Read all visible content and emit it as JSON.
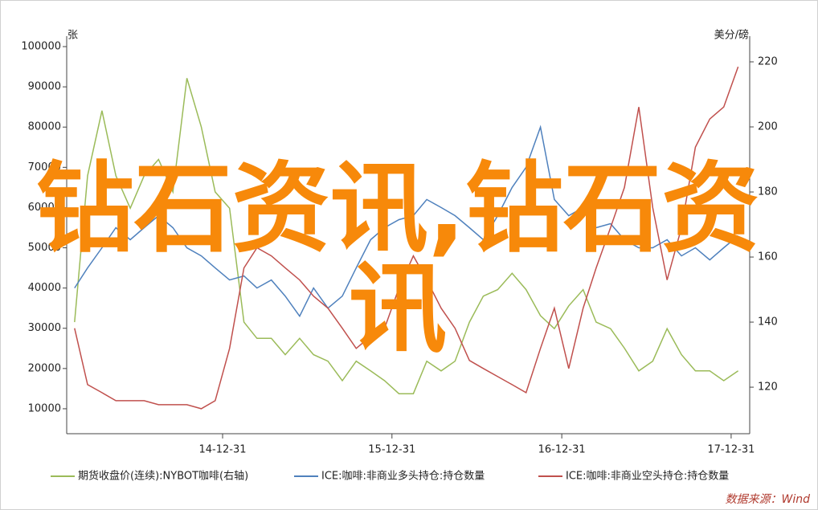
{
  "chart_data": {
    "type": "line",
    "y_label": "张",
    "y2_label": "美分/磅",
    "x": [
      "14-02-15",
      "14-03-15",
      "14-04-15",
      "14-05-15",
      "14-06-15",
      "14-07-15",
      "14-08-15",
      "14-09-15",
      "14-10-15",
      "14-11-15",
      "14-12-15",
      "15-01-15",
      "15-02-15",
      "15-03-15",
      "15-04-15",
      "15-05-15",
      "15-06-15",
      "15-07-15",
      "15-08-15",
      "15-09-15",
      "15-10-15",
      "15-11-15",
      "15-12-15",
      "16-01-15",
      "16-02-15",
      "16-03-15",
      "16-04-15",
      "16-05-15",
      "16-06-15",
      "16-07-15",
      "16-08-15",
      "16-09-15",
      "16-10-15",
      "16-11-15",
      "16-12-15",
      "17-01-15",
      "17-02-15",
      "17-03-15",
      "17-04-15",
      "17-05-15",
      "17-06-15",
      "17-07-15",
      "17-08-15",
      "17-09-15",
      "17-10-15",
      "17-11-15",
      "17-12-15",
      "18-01-15"
    ],
    "xlim": [
      "14-01-29",
      "18-02-09"
    ],
    "xticks": [
      "14-12-31",
      "15-12-31",
      "16-12-31",
      "17-12-31"
    ],
    "ylim": [
      3800,
      102600
    ],
    "yticks": [
      10000,
      20000,
      30000,
      40000,
      50000,
      60000,
      70000,
      80000,
      90000,
      100000
    ],
    "y2lim": [
      105.7,
      227.9
    ],
    "y2ticks": [
      120,
      140,
      160,
      180,
      200,
      220
    ],
    "legend": "bottom",
    "series": [
      {
        "name": "期货收盘价(连续):NYBOT咖啡(右轴)",
        "color": "#9bbb59",
        "axis": "y2",
        "values": [
          140,
          185,
          205,
          185,
          175,
          185,
          190,
          180,
          215,
          200,
          180,
          175,
          140,
          135,
          135,
          130,
          135,
          130,
          128,
          122,
          128,
          125,
          122,
          118,
          118,
          128,
          125,
          128,
          140,
          148,
          150,
          155,
          150,
          142,
          138,
          145,
          150,
          140,
          138,
          132,
          125,
          128,
          138,
          130,
          125,
          125,
          122,
          125
        ]
      },
      {
        "name": "ICE:咖啡:非商业多头持仓:持仓数量",
        "color": "#4f81bd",
        "values": [
          40000,
          45000,
          50000,
          55000,
          52000,
          55000,
          58000,
          55000,
          50000,
          48000,
          45000,
          42000,
          43000,
          40000,
          42000,
          38000,
          33000,
          40000,
          35000,
          38000,
          45000,
          52000,
          55000,
          57000,
          58000,
          62000,
          60000,
          58000,
          55000,
          52000,
          58000,
          65000,
          70000,
          80000,
          62000,
          58000,
          60000,
          55000,
          56000,
          52000,
          50000,
          50000,
          52000,
          48000,
          50000,
          47000,
          50000,
          53000
        ]
      },
      {
        "name": "ICE:咖啡:非商业空头持仓:持仓数量",
        "color": "#c0504d",
        "values": [
          30000,
          16000,
          14000,
          12000,
          12000,
          12000,
          11000,
          11000,
          11000,
          10000,
          12000,
          25000,
          45000,
          50000,
          48000,
          45000,
          42000,
          38000,
          35000,
          30000,
          25000,
          28000,
          30000,
          40000,
          48000,
          42000,
          35000,
          30000,
          22000,
          20000,
          18000,
          16000,
          14000,
          25000,
          35000,
          20000,
          35000,
          45000,
          55000,
          65000,
          85000,
          60000,
          42000,
          55000,
          75000,
          82000,
          85000,
          95000
        ]
      }
    ],
    "source": "数据来源：Wind",
    "watermark": "钻石资讯,钻石资讯"
  }
}
